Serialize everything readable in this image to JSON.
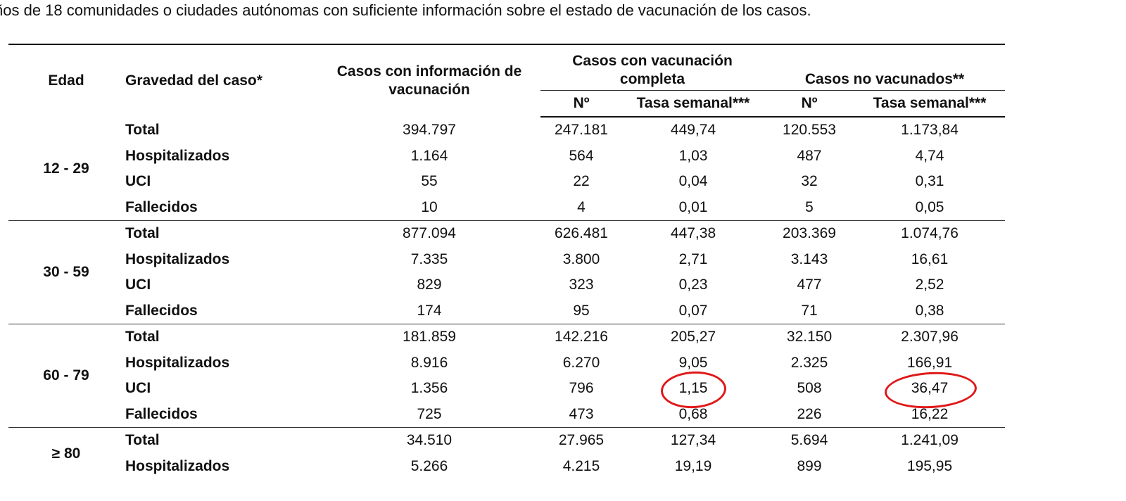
{
  "intro_text": "ños de 18 comunidades o ciudades autónomas con suficiente información sobre el estado de vacunación de los casos.",
  "headers": {
    "edad": "Edad",
    "gravedad": "Gravedad del caso*",
    "info": "Casos con información de vacunación",
    "completa": "Casos con vacunación completa",
    "no_vacunados": "Casos no vacunados**",
    "n": "Nº",
    "tasa": "Tasa semanal***"
  },
  "groups": [
    {
      "age": "12 - 29",
      "rows": [
        {
          "sev": "Total",
          "info": "394.797",
          "vn": "247.181",
          "vt": "449,74",
          "nn": "120.553",
          "nt": "1.173,84"
        },
        {
          "sev": "Hospitalizados",
          "info": "1.164",
          "vn": "564",
          "vt": "1,03",
          "nn": "487",
          "nt": "4,74"
        },
        {
          "sev": "UCI",
          "info": "55",
          "vn": "22",
          "vt": "0,04",
          "nn": "32",
          "nt": "0,31"
        },
        {
          "sev": "Fallecidos",
          "info": "10",
          "vn": "4",
          "vt": "0,01",
          "nn": "5",
          "nt": "0,05"
        }
      ]
    },
    {
      "age": "30 - 59",
      "rows": [
        {
          "sev": "Total",
          "info": "877.094",
          "vn": "626.481",
          "vt": "447,38",
          "nn": "203.369",
          "nt": "1.074,76"
        },
        {
          "sev": "Hospitalizados",
          "info": "7.335",
          "vn": "3.800",
          "vt": "2,71",
          "nn": "3.143",
          "nt": "16,61"
        },
        {
          "sev": "UCI",
          "info": "829",
          "vn": "323",
          "vt": "0,23",
          "nn": "477",
          "nt": "2,52"
        },
        {
          "sev": "Fallecidos",
          "info": "174",
          "vn": "95",
          "vt": "0,07",
          "nn": "71",
          "nt": "0,38"
        }
      ]
    },
    {
      "age": "60 - 79",
      "rows": [
        {
          "sev": "Total",
          "info": "181.859",
          "vn": "142.216",
          "vt": "205,27",
          "nn": "32.150",
          "nt": "2.307,96"
        },
        {
          "sev": "Hospitalizados",
          "info": "8.916",
          "vn": "6.270",
          "vt": "9,05",
          "nn": "2.325",
          "nt": "166,91"
        },
        {
          "sev": "UCI",
          "info": "1.356",
          "vn": "796",
          "vt": "1,15",
          "nn": "508",
          "nt": "36,47"
        },
        {
          "sev": "Fallecidos",
          "info": "725",
          "vn": "473",
          "vt": "0,68",
          "nn": "226",
          "nt": "16,22"
        }
      ]
    },
    {
      "age": "≥ 80",
      "rows": [
        {
          "sev": "Total",
          "info": "34.510",
          "vn": "27.965",
          "vt": "127,34",
          "nn": "5.694",
          "nt": "1.241,09"
        },
        {
          "sev": "Hospitalizados",
          "info": "5.266",
          "vn": "4.215",
          "vt": "19,19",
          "nn": "899",
          "nt": "195,95"
        }
      ]
    }
  ],
  "annotation_color": "#e01818"
}
